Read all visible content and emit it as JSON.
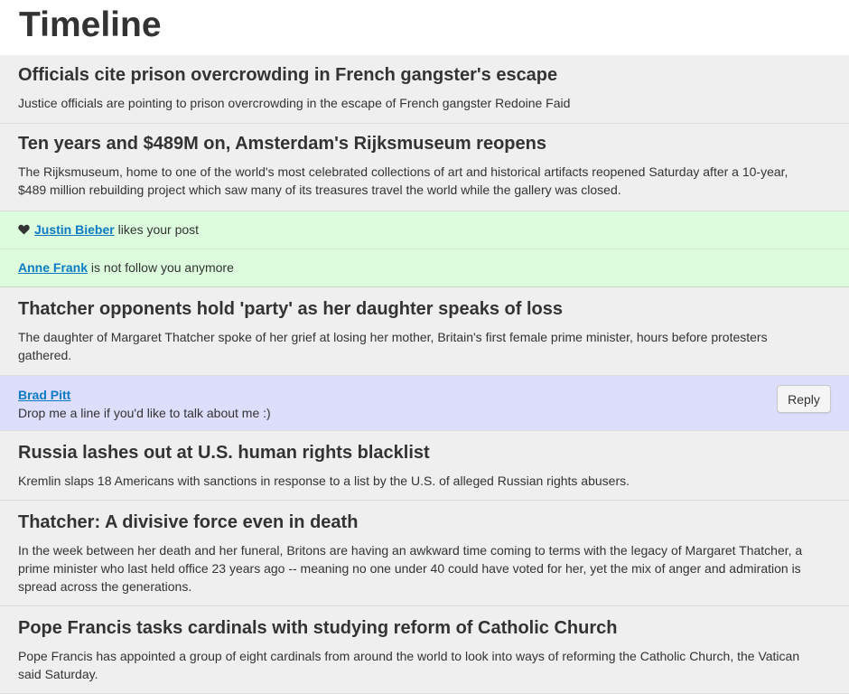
{
  "page": {
    "title": "Timeline"
  },
  "stories": [
    {
      "title": "Officials cite prison overcrowding in French gangster's escape",
      "body": "Justice officials are pointing to prison overcrowding in the escape of French gangster Redoine Faid"
    },
    {
      "title": "Ten years and $489M on, Amsterdam's Rijksmuseum reopens",
      "body_lines": [
        "The Rijksmuseum, home to one of the world's most celebrated collections of art and historical artifacts reopened Saturday after a 10-year,",
        "$489 million rebuilding project which saw many of its treasures travel the world while the gallery was closed."
      ]
    },
    {
      "title": "Thatcher opponents hold 'party' as her daughter speaks of loss",
      "body_lines": [
        "The daughter of Margaret Thatcher spoke of her grief at losing her mother, Britain's first female prime minister, hours before protesters",
        "gathered."
      ]
    },
    {
      "title": "Russia lashes out at U.S. human rights blacklist",
      "body": "Kremlin slaps 18 Americans with sanctions in response to a list by the U.S. of alleged Russian rights abusers."
    },
    {
      "title": "Thatcher: A divisive force even in death",
      "body_lines": [
        "In the week between her death and her funeral, Britons are having an awkward time coming to terms with the legacy of Margaret Thatcher, a",
        "prime minister who last held office 23 years ago -- meaning no one under 40 could have voted for her, yet the mix of anger and admiration is",
        "spread across the generations."
      ]
    },
    {
      "title": "Pope Francis tasks cardinals with studying reform of Catholic Church",
      "body_lines": [
        "Pope Francis has appointed a group of eight cardinals from around the world to look into ways of reforming the Catholic Church, the Vatican",
        "said Saturday."
      ]
    }
  ],
  "notifications": [
    {
      "icon": "heart-icon",
      "user": "Justin Bieber",
      "text": " likes your post"
    },
    {
      "user": "Anne Frank",
      "text": " is not follow you anymore"
    }
  ],
  "message": {
    "user": "Brad Pitt",
    "text": "Drop me a line if you'd like to talk about me :)",
    "reply_label": "Reply"
  },
  "colors": {
    "story_bg": "#efefef",
    "notification_bg": "#ddfcdd",
    "message_bg": "#ddddfc",
    "link": "#0b7cc3"
  }
}
